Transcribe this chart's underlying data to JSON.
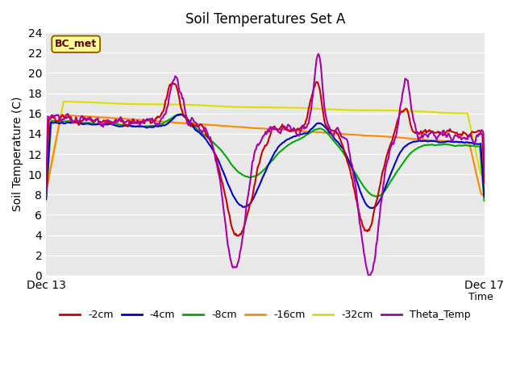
{
  "title": "Soil Temperatures Set A",
  "xlabel": "Time",
  "ylabel": "Soil Temperature (C)",
  "ylim": [
    0,
    24
  ],
  "yticks": [
    0,
    2,
    4,
    6,
    8,
    10,
    12,
    14,
    16,
    18,
    20,
    22,
    24
  ],
  "xtick_labels": [
    "Dec 13",
    "Dec 17"
  ],
  "bg_color": "#e8e8e8",
  "fig_color": "#ffffff",
  "annotation_text": "BC_met",
  "annotation_bg": "#ffff99",
  "annotation_border": "#996600",
  "series_colors": {
    "-2cm": "#cc0000",
    "-4cm": "#0000cc",
    "-8cm": "#00aa00",
    "-16cm": "#ff8800",
    "-32cm": "#dddd00",
    "Theta_Temp": "#aa00aa"
  },
  "n_points": 500
}
